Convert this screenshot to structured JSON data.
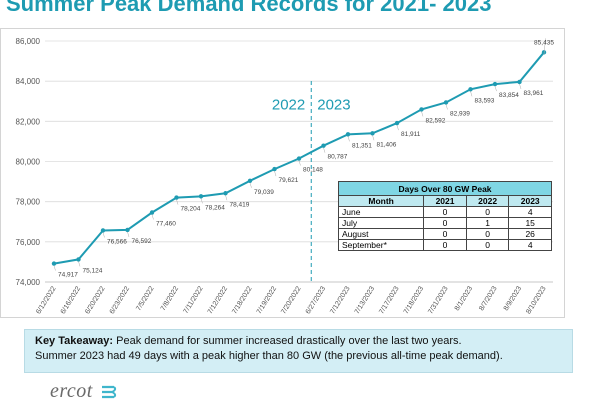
{
  "title": "Summer Peak Demand Records for 2021- 2023",
  "chart_data": {
    "type": "line",
    "ylim": [
      74000,
      86000
    ],
    "yticks": [
      "74,000",
      "76,000",
      "78,000",
      "80,000",
      "82,000",
      "84,000",
      "86,000"
    ],
    "categories": [
      "6/12/2022",
      "6/16/2022",
      "6/20/2022",
      "6/23/2022",
      "7/5/2022",
      "7/8/2022",
      "7/11/2022",
      "7/12/2022",
      "7/18/2022",
      "7/19/2022",
      "7/20/2022",
      "6/27/2023",
      "7/12/2023",
      "7/13/2023",
      "7/17/2023",
      "7/18/2023",
      "7/31/2023",
      "8/1/2023",
      "8/7/2023",
      "8/9/2023",
      "8/10/2023"
    ],
    "values": [
      74917,
      75124,
      76566,
      76592,
      77460,
      78204,
      78264,
      78419,
      79039,
      79621,
      80148,
      80787,
      81351,
      81406,
      81911,
      82592,
      82939,
      83593,
      83854,
      83961,
      85435
    ],
    "data_labels": [
      "74,917",
      "75,124",
      "76,566",
      "76,592",
      "77,460",
      "78,204",
      "78,264",
      "78,419",
      "79,039",
      "79,621",
      "80,148",
      "80,787",
      "81,351",
      "81,406",
      "81,911",
      "82,592",
      "82,939",
      "83,593",
      "83,854",
      "83,961",
      "85,435"
    ],
    "divider_after_index": 10,
    "year_labels": [
      "2022",
      "2023"
    ],
    "grid": true,
    "line_color": "#1e9bb2"
  },
  "days_table": {
    "caption": "Days Over 80 GW Peak",
    "headers": [
      "Month",
      "2021",
      "2022",
      "2023"
    ],
    "rows": [
      [
        "June",
        "0",
        "0",
        "4"
      ],
      [
        "July",
        "0",
        "1",
        "15"
      ],
      [
        "August",
        "0",
        "0",
        "26"
      ],
      [
        "September*",
        "0",
        "0",
        "4"
      ]
    ]
  },
  "takeaway": {
    "label": "Key Takeaway:",
    "line1": " Peak demand for summer increased drastically over the last two years.",
    "line2": "Summer 2023 had 49 days with a peak higher than 80 GW (the previous all-time peak demand)."
  },
  "logo": "ercot"
}
